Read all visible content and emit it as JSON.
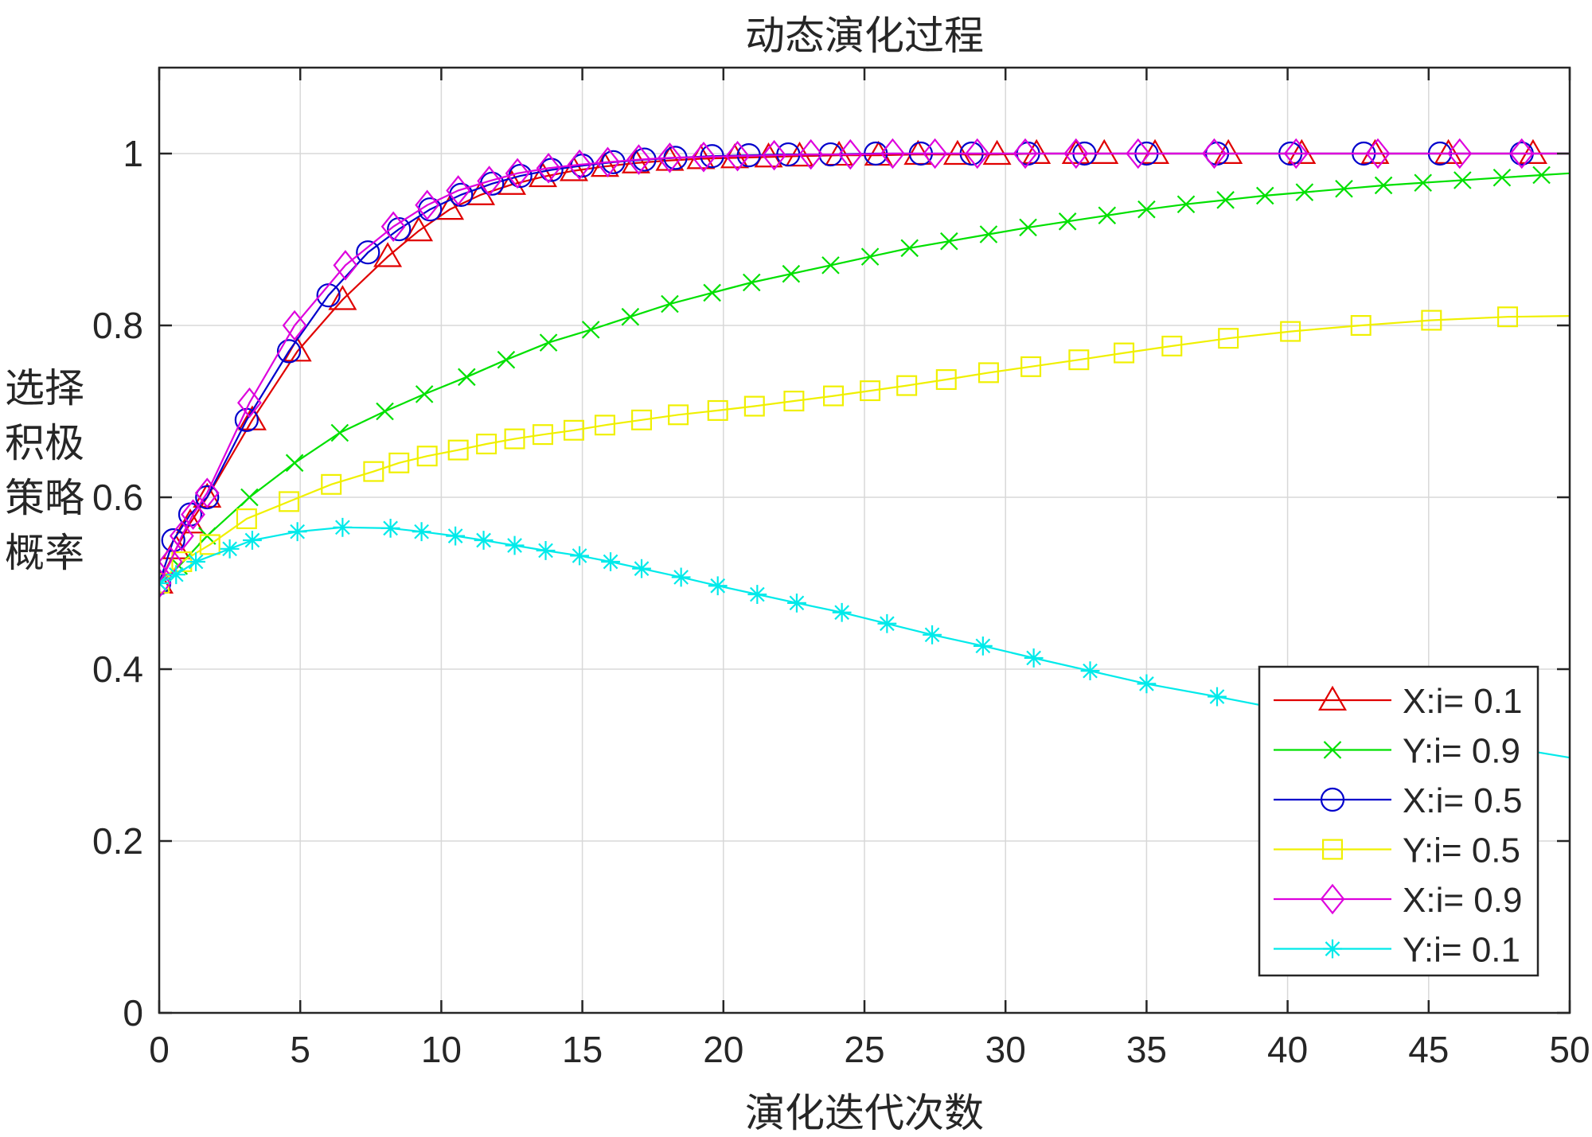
{
  "chart_data": {
    "type": "line",
    "title": "动态演化过程",
    "xlabel": "演化迭代次数",
    "ylabel_lines": [
      "选择",
      "积极",
      "策略",
      "概率"
    ],
    "xlim": [
      0,
      50
    ],
    "ylim": [
      0,
      1.1
    ],
    "xticks": [
      0,
      5,
      10,
      15,
      20,
      25,
      30,
      35,
      40,
      45,
      50
    ],
    "yticks": [
      0,
      0.2,
      0.4,
      0.6,
      0.8,
      1
    ],
    "xtick_labels": [
      "0",
      "5",
      "10",
      "15",
      "20",
      "25",
      "30",
      "35",
      "40",
      "45",
      "50"
    ],
    "ytick_labels": [
      "0",
      "0.2",
      "0.4",
      "0.6",
      "0.8",
      "1"
    ],
    "grid": true,
    "legend_position": "bottom-right",
    "series": [
      {
        "name": "X:i= 0.1",
        "color": "#e00000",
        "marker": "triangle",
        "x": [
          0,
          0.6,
          1.1,
          1.7,
          3.3,
          4.9,
          6.5,
          8.1,
          9.2,
          10.3,
          11.4,
          12.5,
          13.6,
          14.7,
          15.8,
          16.9,
          18.1,
          19.2,
          20.4,
          21.6,
          22.7,
          24.1,
          25.5,
          26.9,
          28.3,
          29.7,
          31.1,
          32.5,
          33.5,
          35.3,
          37.9,
          40.5,
          43.1,
          45.7,
          48.7,
          50
        ],
        "y": [
          0.5,
          0.54,
          0.57,
          0.6,
          0.69,
          0.77,
          0.83,
          0.88,
          0.91,
          0.935,
          0.952,
          0.964,
          0.973,
          0.98,
          0.985,
          0.989,
          0.992,
          0.994,
          0.995,
          0.996,
          0.997,
          0.998,
          0.998,
          0.999,
          0.999,
          0.999,
          1.0,
          1.0,
          1.0,
          1.0,
          1.0,
          1.0,
          1.0,
          1.0,
          1.0,
          1.0
        ]
      },
      {
        "name": "Y:i= 0.9",
        "color": "#00e000",
        "marker": "x",
        "x": [
          0,
          0.7,
          1.7,
          3.2,
          4.8,
          6.4,
          8.0,
          9.4,
          10.9,
          12.3,
          13.8,
          15.3,
          16.7,
          18.1,
          19.6,
          21.0,
          22.4,
          23.8,
          25.2,
          26.6,
          28.0,
          29.4,
          30.8,
          32.2,
          33.6,
          35.0,
          36.4,
          37.8,
          39.2,
          40.6,
          42.0,
          43.4,
          44.8,
          46.2,
          47.6,
          49.0,
          50
        ],
        "y": [
          0.5,
          0.52,
          0.555,
          0.6,
          0.64,
          0.675,
          0.7,
          0.72,
          0.74,
          0.76,
          0.78,
          0.795,
          0.81,
          0.825,
          0.838,
          0.85,
          0.86,
          0.87,
          0.88,
          0.89,
          0.898,
          0.906,
          0.914,
          0.921,
          0.928,
          0.935,
          0.941,
          0.946,
          0.951,
          0.955,
          0.959,
          0.963,
          0.966,
          0.969,
          0.972,
          0.975,
          0.977
        ]
      },
      {
        "name": "X:i= 0.5",
        "color": "#0000cc",
        "marker": "circle",
        "x": [
          0,
          0.5,
          1.1,
          1.7,
          3.1,
          4.6,
          6.0,
          7.4,
          8.5,
          9.6,
          10.7,
          11.8,
          12.8,
          13.9,
          15.0,
          16.1,
          17.2,
          18.3,
          19.6,
          20.9,
          22.3,
          23.8,
          25.4,
          27.0,
          28.8,
          30.8,
          32.8,
          35.0,
          37.5,
          40.1,
          42.7,
          45.4,
          48.3,
          50
        ],
        "y": [
          0.5,
          0.55,
          0.58,
          0.6,
          0.69,
          0.77,
          0.835,
          0.885,
          0.912,
          0.935,
          0.952,
          0.965,
          0.974,
          0.981,
          0.986,
          0.99,
          0.993,
          0.995,
          0.997,
          0.998,
          0.999,
          0.999,
          1.0,
          1.0,
          1.0,
          1.0,
          1.0,
          1.0,
          1.0,
          1.0,
          1.0,
          1.0,
          1.0,
          1.0
        ]
      },
      {
        "name": "Y:i= 0.5",
        "color": "#f0f000",
        "marker": "square",
        "x": [
          0,
          0.8,
          1.8,
          3.1,
          4.6,
          6.1,
          7.6,
          8.5,
          9.5,
          10.6,
          11.6,
          12.6,
          13.6,
          14.7,
          15.8,
          17.1,
          18.4,
          19.8,
          21.1,
          22.5,
          23.9,
          25.2,
          26.5,
          27.9,
          29.4,
          30.9,
          32.6,
          34.2,
          35.9,
          37.9,
          40.1,
          42.6,
          45.1,
          47.8,
          50
        ],
        "y": [
          0.5,
          0.525,
          0.545,
          0.575,
          0.595,
          0.615,
          0.63,
          0.64,
          0.648,
          0.655,
          0.662,
          0.668,
          0.673,
          0.678,
          0.684,
          0.69,
          0.696,
          0.701,
          0.706,
          0.712,
          0.718,
          0.724,
          0.73,
          0.737,
          0.745,
          0.752,
          0.76,
          0.768,
          0.776,
          0.785,
          0.793,
          0.8,
          0.806,
          0.81,
          0.811
        ]
      },
      {
        "name": "X:i= 0.9",
        "color": "#dd00dd",
        "marker": "diamond",
        "x": [
          0,
          0.4,
          0.8,
          1.2,
          1.7,
          3.2,
          4.8,
          6.6,
          8.3,
          9.5,
          10.6,
          11.7,
          12.7,
          13.8,
          14.9,
          15.9,
          17.0,
          18.1,
          19.3,
          20.5,
          21.8,
          23.1,
          24.5,
          26.0,
          27.5,
          29.0,
          30.7,
          32.5,
          34.7,
          37.4,
          40.3,
          43.2,
          46.1,
          48.3,
          50
        ],
        "y": [
          0.5,
          0.525,
          0.555,
          0.58,
          0.605,
          0.71,
          0.8,
          0.87,
          0.915,
          0.94,
          0.957,
          0.968,
          0.977,
          0.983,
          0.987,
          0.99,
          0.993,
          0.995,
          0.996,
          0.997,
          0.998,
          0.999,
          0.999,
          1.0,
          1.0,
          1.0,
          1.0,
          1.0,
          1.0,
          1.0,
          1.0,
          1.0,
          1.0,
          1.0,
          1.0
        ]
      },
      {
        "name": "Y:i= 0.1",
        "color": "#00eaea",
        "marker": "asterisk",
        "x": [
          0,
          0.6,
          1.3,
          2.5,
          3.3,
          4.9,
          6.5,
          8.2,
          9.3,
          10.5,
          11.5,
          12.6,
          13.7,
          14.9,
          16.0,
          17.1,
          18.5,
          19.8,
          21.2,
          22.6,
          24.2,
          25.8,
          27.4,
          29.2,
          31.0,
          33.0,
          35.0,
          37.5,
          40.0,
          42.7,
          45.5,
          48.0,
          50
        ],
        "y": [
          0.5,
          0.51,
          0.525,
          0.54,
          0.55,
          0.56,
          0.565,
          0.564,
          0.56,
          0.555,
          0.55,
          0.544,
          0.538,
          0.532,
          0.525,
          0.517,
          0.507,
          0.497,
          0.487,
          0.477,
          0.466,
          0.453,
          0.44,
          0.427,
          0.413,
          0.398,
          0.383,
          0.368,
          0.352,
          0.337,
          0.322,
          0.308,
          0.297
        ]
      }
    ]
  }
}
